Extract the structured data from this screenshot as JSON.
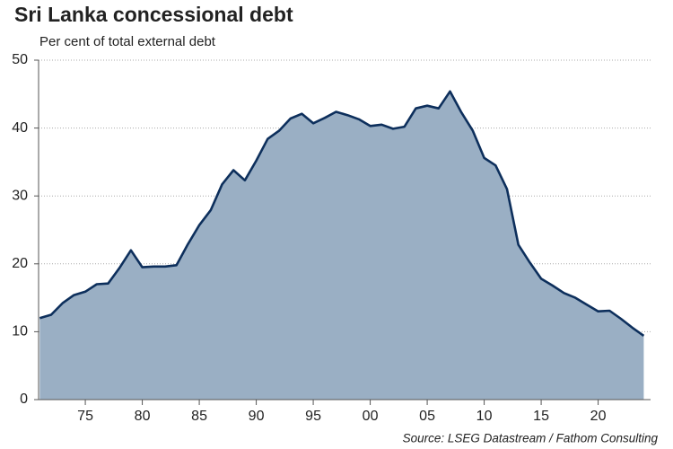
{
  "chart_data": {
    "type": "area",
    "title": "Sri Lanka concessional debt",
    "subtitle": "Per cent of total external debt",
    "source": "Source: LSEG Datastream / Fathom Consulting",
    "x": [
      1971,
      1972,
      1973,
      1974,
      1975,
      1976,
      1977,
      1978,
      1979,
      1980,
      1981,
      1982,
      1983,
      1984,
      1985,
      1986,
      1987,
      1988,
      1989,
      1990,
      1991,
      1992,
      1993,
      1994,
      1995,
      1996,
      1997,
      1998,
      1999,
      2000,
      2001,
      2002,
      2003,
      2004,
      2005,
      2006,
      2007,
      2008,
      2009,
      2010,
      2011,
      2012,
      2013,
      2014,
      2015,
      2016,
      2017,
      2018,
      2019,
      2020,
      2021,
      2022,
      2023,
      2024
    ],
    "values": [
      12.0,
      12.5,
      14.2,
      15.4,
      15.9,
      17.0,
      17.1,
      19.4,
      22.0,
      19.5,
      19.6,
      19.6,
      19.8,
      22.9,
      25.7,
      27.9,
      31.7,
      33.8,
      32.3,
      35.2,
      38.4,
      39.6,
      41.4,
      42.1,
      40.7,
      41.5,
      42.4,
      41.9,
      41.3,
      40.3,
      40.5,
      39.9,
      40.2,
      42.9,
      43.3,
      42.9,
      45.4,
      42.3,
      39.6,
      35.6,
      34.5,
      31.0,
      22.8,
      20.2,
      17.8,
      16.8,
      15.7,
      15.0,
      14.0,
      13.0,
      13.1,
      11.9,
      10.6,
      9.4
    ],
    "color": "#9aafc4",
    "line_color": "#0d2f5c",
    "xlim": [
      1970.9,
      2024.6
    ],
    "xticks": [
      {
        "value": 1975,
        "label": "75"
      },
      {
        "value": 1980,
        "label": "80"
      },
      {
        "value": 1985,
        "label": "85"
      },
      {
        "value": 1990,
        "label": "90"
      },
      {
        "value": 1995,
        "label": "95"
      },
      {
        "value": 2000,
        "label": "00"
      },
      {
        "value": 2005,
        "label": "05"
      },
      {
        "value": 2010,
        "label": "10"
      },
      {
        "value": 2015,
        "label": "15"
      },
      {
        "value": 2020,
        "label": "20"
      }
    ],
    "ylim": [
      0,
      50
    ],
    "yticks": [
      0,
      10,
      20,
      30,
      40,
      50
    ],
    "grid": true
  }
}
